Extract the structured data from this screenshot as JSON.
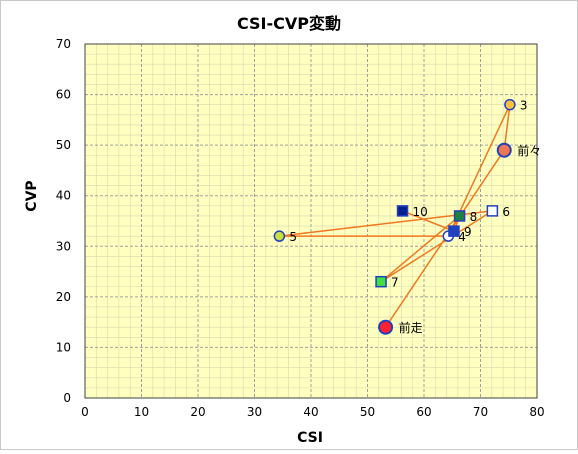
{
  "chart_data": {
    "type": "scatter",
    "title": "CSI-CVP変動",
    "xlabel": "CSI",
    "ylabel": "CVP",
    "xlim": [
      0,
      80
    ],
    "ylim": [
      0,
      70
    ],
    "xticks": [
      0,
      10,
      20,
      30,
      40,
      50,
      60,
      70,
      80
    ],
    "yticks": [
      0,
      10,
      20,
      30,
      40,
      50,
      60,
      70
    ],
    "grid": true,
    "legend": "none",
    "colors": {
      "plot_bg": "#ffffc0",
      "line": "#f07820",
      "grid": "#a0a0a0"
    },
    "points": [
      {
        "label": "前走",
        "x": 53.2,
        "y": 14,
        "marker": "circle-large",
        "fill": "#ff2030",
        "stroke": "#2040c0"
      },
      {
        "label": "前々",
        "x": 74.2,
        "y": 49,
        "marker": "circle-large",
        "fill": "#f07850",
        "stroke": "#2040c0"
      },
      {
        "label": "3",
        "x": 75.2,
        "y": 58,
        "marker": "circle",
        "fill": "#ffc040",
        "stroke": "#2040c0"
      },
      {
        "label": "4",
        "x": 64.3,
        "y": 32,
        "marker": "circle",
        "fill": "#ffffff",
        "stroke": "#2040c0"
      },
      {
        "label": "5",
        "x": 34.4,
        "y": 32,
        "marker": "circle",
        "fill": "#c8e040",
        "stroke": "#2040c0"
      },
      {
        "label": "6",
        "x": 72.1,
        "y": 37,
        "marker": "square",
        "fill": "#ffffff",
        "stroke": "#2040c0"
      },
      {
        "label": "7",
        "x": 52.4,
        "y": 23,
        "marker": "square",
        "fill": "#40e040",
        "stroke": "#2040c0"
      },
      {
        "label": "8",
        "x": 66.3,
        "y": 36,
        "marker": "square",
        "fill": "#208040",
        "stroke": "#2040c0"
      },
      {
        "label": "9",
        "x": 65.3,
        "y": 33,
        "marker": "square",
        "fill": "#2040c0",
        "stroke": "#2040c0"
      },
      {
        "label": "10",
        "x": 56.2,
        "y": 37,
        "marker": "square",
        "fill": "#002090",
        "stroke": "#2040c0"
      }
    ]
  }
}
